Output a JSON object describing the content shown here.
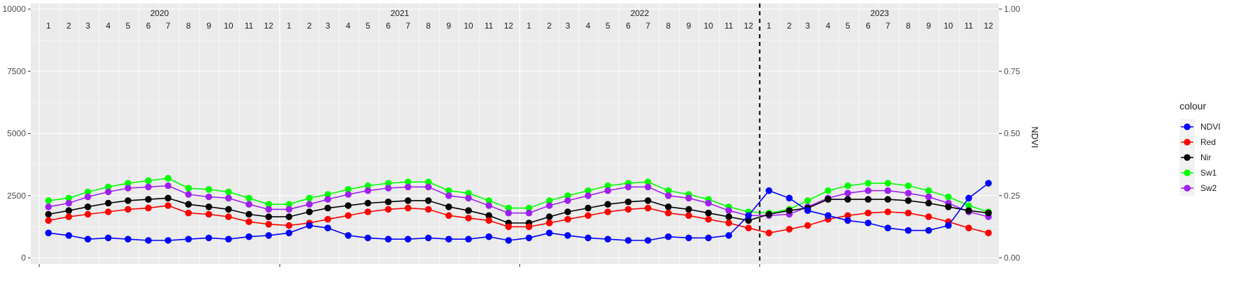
{
  "chart_data": {
    "type": "line",
    "title": "",
    "xlabel": "",
    "ylabel": "",
    "y2label": "NDVI",
    "ylim": [
      0,
      10000
    ],
    "y2lim": [
      0.0,
      1.0
    ],
    "y_ticks": [
      0,
      2500,
      5000,
      7500,
      10000
    ],
    "y_tick_labels": [
      "0",
      "2500",
      "5000",
      "7500",
      "10000"
    ],
    "y2_ticks": [
      0.0,
      0.25,
      0.5,
      0.75,
      1.0
    ],
    "y2_tick_labels": [
      "0.00",
      "0.25",
      "0.50",
      "0.75",
      "1.00"
    ],
    "years": [
      "2020",
      "2021",
      "2022",
      "2023"
    ],
    "month_labels": [
      "1",
      "2",
      "3",
      "4",
      "5",
      "6",
      "7",
      "8",
      "9",
      "10",
      "11",
      "12"
    ],
    "vline_at": "2023-01-01",
    "grid": true,
    "legend": {
      "title": "colour",
      "position": "right",
      "entries": [
        {
          "name": "NDVI",
          "color": "#0000FF"
        },
        {
          "name": "Red",
          "color": "#FF0000"
        },
        {
          "name": "Nir",
          "color": "#000000"
        },
        {
          "name": "Sw1",
          "color": "#00FF00"
        },
        {
          "name": "Sw2",
          "color": "#A020F0"
        }
      ]
    },
    "series": [
      {
        "name": "Sw1",
        "color": "#00FF00",
        "axis": "left",
        "x": [
          "2020-01-15",
          "2020-02-15",
          "2020-03-15",
          "2020-04-15",
          "2020-05-15",
          "2020-06-15",
          "2020-07-15",
          "2020-08-15",
          "2020-09-15",
          "2020-10-15",
          "2020-11-15",
          "2020-12-15",
          "2021-01-15",
          "2021-02-15",
          "2021-03-15",
          "2021-04-15",
          "2021-05-15",
          "2021-06-15",
          "2021-07-15",
          "2021-08-15",
          "2021-09-15",
          "2021-10-15",
          "2021-11-15",
          "2021-12-15",
          "2022-01-15",
          "2022-02-15",
          "2022-03-15",
          "2022-04-15",
          "2022-05-15",
          "2022-06-15",
          "2022-07-15",
          "2022-08-15",
          "2022-09-15",
          "2022-10-15",
          "2022-11-15",
          "2022-12-15",
          "2023-01-15",
          "2023-02-15",
          "2023-03-15",
          "2023-04-15",
          "2023-05-15",
          "2023-06-15",
          "2023-07-15",
          "2023-08-15",
          "2023-09-15",
          "2023-10-15",
          "2023-11-15",
          "2023-12-15"
        ],
        "y": [
          2300,
          2400,
          2650,
          2850,
          3000,
          3100,
          3200,
          2800,
          2750,
          2650,
          2400,
          2150,
          2150,
          2400,
          2550,
          2750,
          2900,
          3000,
          3050,
          3050,
          2700,
          2600,
          2300,
          2000,
          2000,
          2300,
          2500,
          2700,
          2900,
          3000,
          3050,
          2700,
          2550,
          2350,
          2050,
          1850,
          1800,
          1950,
          2300,
          2700,
          2900,
          3000,
          3000,
          2900,
          2700,
          2450,
          2100,
          1850
        ]
      },
      {
        "name": "Sw2",
        "color": "#A020F0",
        "axis": "left",
        "x": [
          "2020-01-15",
          "2020-02-15",
          "2020-03-15",
          "2020-04-15",
          "2020-05-15",
          "2020-06-15",
          "2020-07-15",
          "2020-08-15",
          "2020-09-15",
          "2020-10-15",
          "2020-11-15",
          "2020-12-15",
          "2021-01-15",
          "2021-02-15",
          "2021-03-15",
          "2021-04-15",
          "2021-05-15",
          "2021-06-15",
          "2021-07-15",
          "2021-08-15",
          "2021-09-15",
          "2021-10-15",
          "2021-11-15",
          "2021-12-15",
          "2022-01-15",
          "2022-02-15",
          "2022-03-15",
          "2022-04-15",
          "2022-05-15",
          "2022-06-15",
          "2022-07-15",
          "2022-08-15",
          "2022-09-15",
          "2022-10-15",
          "2022-11-15",
          "2022-12-15",
          "2023-01-15",
          "2023-02-15",
          "2023-03-15",
          "2023-04-15",
          "2023-05-15",
          "2023-06-15",
          "2023-07-15",
          "2023-08-15",
          "2023-09-15",
          "2023-10-15",
          "2023-11-15",
          "2023-12-15"
        ],
        "y": [
          2050,
          2200,
          2450,
          2650,
          2800,
          2850,
          2900,
          2550,
          2450,
          2400,
          2150,
          1950,
          1950,
          2150,
          2350,
          2550,
          2700,
          2800,
          2850,
          2850,
          2500,
          2400,
          2100,
          1800,
          1800,
          2100,
          2300,
          2500,
          2700,
          2850,
          2850,
          2500,
          2400,
          2200,
          1900,
          1700,
          1700,
          1750,
          2050,
          2400,
          2600,
          2700,
          2700,
          2600,
          2450,
          2200,
          1850,
          1650
        ]
      },
      {
        "name": "Nir",
        "color": "#000000",
        "axis": "left",
        "x": [
          "2020-01-15",
          "2020-02-15",
          "2020-03-15",
          "2020-04-15",
          "2020-05-15",
          "2020-06-15",
          "2020-07-15",
          "2020-08-15",
          "2020-09-15",
          "2020-10-15",
          "2020-11-15",
          "2020-12-15",
          "2021-01-15",
          "2021-02-15",
          "2021-03-15",
          "2021-04-15",
          "2021-05-15",
          "2021-06-15",
          "2021-07-15",
          "2021-08-15",
          "2021-09-15",
          "2021-10-15",
          "2021-11-15",
          "2021-12-15",
          "2022-01-15",
          "2022-02-15",
          "2022-03-15",
          "2022-04-15",
          "2022-05-15",
          "2022-06-15",
          "2022-07-15",
          "2022-08-15",
          "2022-09-15",
          "2022-10-15",
          "2022-11-15",
          "2022-12-15",
          "2023-01-15",
          "2023-02-15",
          "2023-03-15",
          "2023-04-15",
          "2023-05-15",
          "2023-06-15",
          "2023-07-15",
          "2023-08-15",
          "2023-09-15",
          "2023-10-15",
          "2023-11-15",
          "2023-12-15"
        ],
        "y": [
          1750,
          1900,
          2050,
          2200,
          2300,
          2350,
          2400,
          2150,
          2050,
          1950,
          1750,
          1650,
          1650,
          1850,
          2000,
          2100,
          2200,
          2250,
          2300,
          2300,
          2050,
          1900,
          1700,
          1400,
          1400,
          1650,
          1850,
          2000,
          2150,
          2250,
          2300,
          2050,
          1950,
          1800,
          1650,
          1500,
          1750,
          1900,
          2000,
          2350,
          2350,
          2350,
          2350,
          2300,
          2200,
          2050,
          1900,
          1800
        ]
      },
      {
        "name": "Red",
        "color": "#FF0000",
        "axis": "left",
        "x": [
          "2020-01-15",
          "2020-02-15",
          "2020-03-15",
          "2020-04-15",
          "2020-05-15",
          "2020-06-15",
          "2020-07-15",
          "2020-08-15",
          "2020-09-15",
          "2020-10-15",
          "2020-11-15",
          "2020-12-15",
          "2021-01-15",
          "2021-02-15",
          "2021-03-15",
          "2021-04-15",
          "2021-05-15",
          "2021-06-15",
          "2021-07-15",
          "2021-08-15",
          "2021-09-15",
          "2021-10-15",
          "2021-11-15",
          "2021-12-15",
          "2022-01-15",
          "2022-02-15",
          "2022-03-15",
          "2022-04-15",
          "2022-05-15",
          "2022-06-15",
          "2022-07-15",
          "2022-08-15",
          "2022-09-15",
          "2022-10-15",
          "2022-11-15",
          "2022-12-15",
          "2023-01-15",
          "2023-02-15",
          "2023-03-15",
          "2023-04-15",
          "2023-05-15",
          "2023-06-15",
          "2023-07-15",
          "2023-08-15",
          "2023-09-15",
          "2023-10-15",
          "2023-11-15",
          "2023-12-15"
        ],
        "y": [
          1500,
          1650,
          1750,
          1850,
          1950,
          2000,
          2100,
          1800,
          1750,
          1650,
          1450,
          1350,
          1300,
          1400,
          1550,
          1700,
          1850,
          1950,
          2000,
          1950,
          1700,
          1600,
          1500,
          1250,
          1250,
          1400,
          1550,
          1700,
          1850,
          1950,
          2000,
          1800,
          1700,
          1550,
          1400,
          1200,
          1000,
          1150,
          1300,
          1550,
          1700,
          1800,
          1850,
          1800,
          1650,
          1450,
          1200,
          1000
        ]
      },
      {
        "name": "NDVI",
        "color": "#0000FF",
        "axis": "right",
        "x": [
          "2020-01-15",
          "2020-02-15",
          "2020-03-15",
          "2020-04-15",
          "2020-05-15",
          "2020-06-15",
          "2020-07-15",
          "2020-08-15",
          "2020-09-15",
          "2020-10-15",
          "2020-11-15",
          "2020-12-15",
          "2021-01-15",
          "2021-02-15",
          "2021-03-15",
          "2021-04-15",
          "2021-05-15",
          "2021-06-15",
          "2021-07-15",
          "2021-08-15",
          "2021-09-15",
          "2021-10-15",
          "2021-11-15",
          "2021-12-15",
          "2022-01-15",
          "2022-02-15",
          "2022-03-15",
          "2022-04-15",
          "2022-05-15",
          "2022-06-15",
          "2022-07-15",
          "2022-08-15",
          "2022-09-15",
          "2022-10-15",
          "2022-11-15",
          "2022-12-15",
          "2023-01-15",
          "2023-02-15",
          "2023-03-15",
          "2023-04-15",
          "2023-05-15",
          "2023-06-15",
          "2023-07-15",
          "2023-08-15",
          "2023-09-15",
          "2023-10-15",
          "2023-11-15",
          "2023-12-15"
        ],
        "y": [
          0.1,
          0.09,
          0.075,
          0.08,
          0.075,
          0.07,
          0.07,
          0.075,
          0.08,
          0.075,
          0.085,
          0.09,
          0.1,
          0.13,
          0.12,
          0.09,
          0.08,
          0.075,
          0.075,
          0.08,
          0.075,
          0.075,
          0.085,
          0.07,
          0.08,
          0.1,
          0.09,
          0.08,
          0.075,
          0.07,
          0.07,
          0.085,
          0.08,
          0.08,
          0.09,
          0.17,
          0.27,
          0.24,
          0.19,
          0.17,
          0.15,
          0.14,
          0.12,
          0.11,
          0.11,
          0.13,
          0.24,
          0.3
        ]
      }
    ]
  }
}
